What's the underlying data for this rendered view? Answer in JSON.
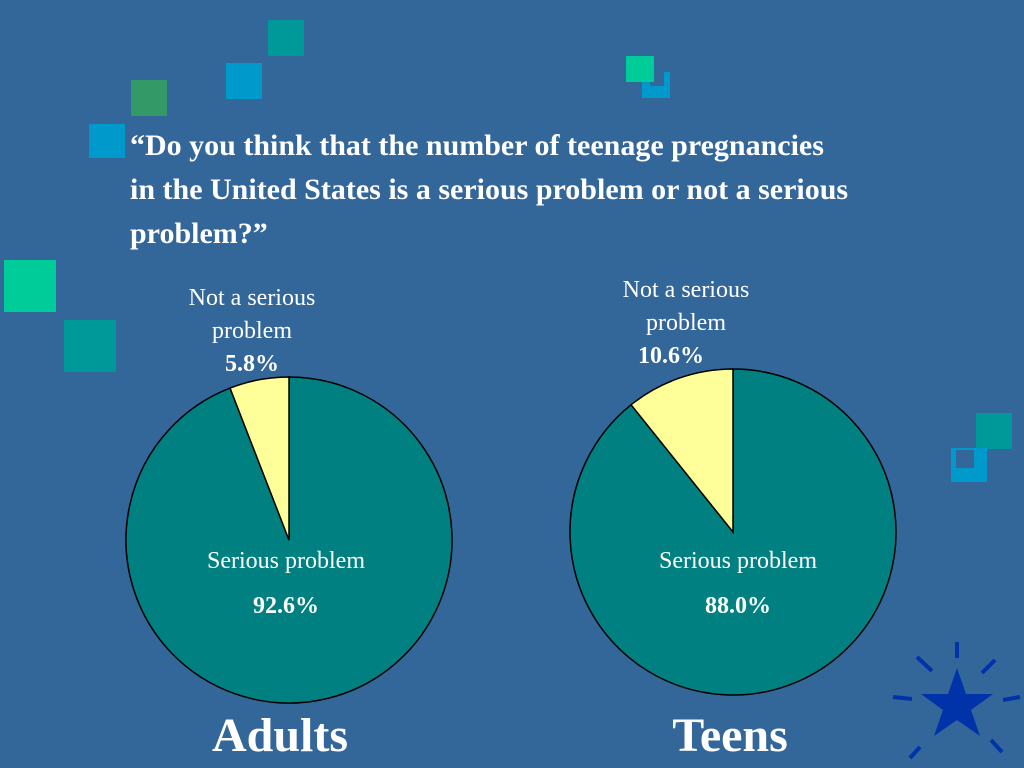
{
  "question": "“Do you think that the number of teenage pregnancies in the United States is a serious problem or not a serious problem?”",
  "colors": {
    "background": "#336699",
    "serious": "#008080",
    "not_serious": "#ffff99",
    "deco_teal": "#009999",
    "deco_blue": "#0099cc",
    "deco_green": "#339966",
    "deco_mint": "#00cc99",
    "star": "#0033aa"
  },
  "chart_data": [
    {
      "type": "pie",
      "title": "Adults",
      "slices": [
        {
          "label": "Not a serious problem",
          "value": 5.8,
          "display": "5.8%"
        },
        {
          "label": "Serious problem",
          "value": 92.6,
          "display": "92.6%"
        }
      ]
    },
    {
      "type": "pie",
      "title": "Teens",
      "slices": [
        {
          "label": "Not a serious problem",
          "value": 10.6,
          "display": "10.6%"
        },
        {
          "label": "Serious problem",
          "value": 88.0,
          "display": "88.0%"
        }
      ]
    }
  ],
  "labels": {
    "not_serious_line1": "Not a serious",
    "not_serious_line2": "problem",
    "serious": "Serious problem"
  }
}
